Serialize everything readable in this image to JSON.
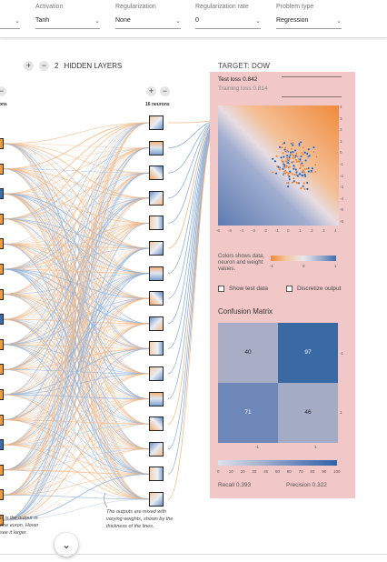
{
  "toolbar": {
    "controls": [
      {
        "label": "Activation",
        "value": "Tanh"
      },
      {
        "label": "Regularization",
        "value": "None"
      },
      {
        "label": "Regularization rate",
        "value": "0"
      },
      {
        "label": "Problem type",
        "value": "Regression"
      }
    ]
  },
  "network": {
    "hidden_layers_count": "2",
    "hidden_layers_label": "HIDDEN LAYERS",
    "left_layer_label": "rons",
    "right_layer_label": "16 neurons",
    "plus": "+",
    "minus": "−"
  },
  "output": {
    "target_title": "TARGET: DOW",
    "test_loss": "Test loss 0.842",
    "training_loss": "Training loss 0.814",
    "y_ticks": [
      "4",
      "3",
      "2",
      "1",
      "0",
      "-1",
      "-2",
      "-3",
      "-4",
      "-5",
      "-6"
    ],
    "x_ticks": [
      "-6",
      "-5",
      "-4",
      "-3",
      "-2",
      "-1",
      "0",
      "1",
      "2",
      "3",
      "4"
    ],
    "legend_text": "Colors shows data, neuron and weight values.",
    "legend_ticks": [
      "-1",
      "0",
      "1"
    ],
    "show_test_data": "Show test data",
    "discretize_output": "Discretize output"
  },
  "confusion": {
    "title": "Confusion Matrix",
    "cells": [
      {
        "value": "40",
        "color": "#a9aec6"
      },
      {
        "value": "97",
        "color": "#3a6aa4"
      },
      {
        "value": "71",
        "color": "#6d87b8"
      },
      {
        "value": "46",
        "color": "#a4abc4"
      }
    ],
    "row_labels": [
      "-1",
      "1"
    ],
    "col_labels": [
      "-1",
      "1"
    ],
    "scale_ticks": [
      "0",
      "10",
      "20",
      "30",
      "40",
      "50",
      "60",
      "70",
      "80",
      "90",
      "100"
    ],
    "recall": "Recall 0.393",
    "precision": "Precision 0.322"
  },
  "notes": {
    "left": "is is the output m one euron. Hover see it larger.",
    "middle": "The outputs are mixed with varying weights, shown by the thickness of the lines."
  },
  "fab": {
    "icon": "chevron-down-icon",
    "glyph": "⌄"
  },
  "colors": {
    "panel": "#f1c7c7",
    "orange": "#f08a3c",
    "blue": "#3a6db0"
  }
}
